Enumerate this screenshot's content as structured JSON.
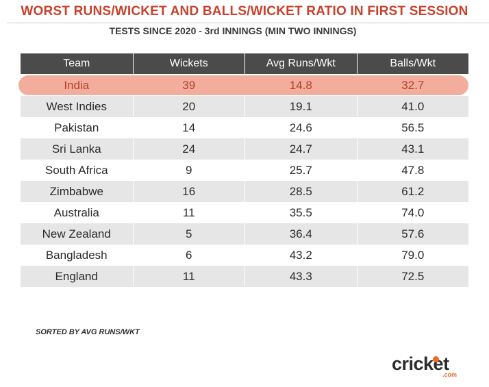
{
  "title": "WORST RUNS/WICKET AND BALLS/WICKET RATIO IN FIRST SESSION",
  "subtitle": "TESTS SINCE 2020 - 3rd INNINGS (MIN TWO INNINGS)",
  "footnote": "SORTED BY AVG RUNS/WKT",
  "logo": {
    "text": "cricket",
    "sub": ".com"
  },
  "colors": {
    "title": "#c8412c",
    "header_bg": "#4b4b4b",
    "highlight_bg": "#f3ad9c",
    "highlight_text": "#b0412d",
    "stripe": "#e6e6e6",
    "logo_accent": "#ef6c28"
  },
  "chart_data": {
    "type": "table",
    "columns": [
      "Team",
      "Wickets",
      "Avg Runs/Wkt",
      "Balls/Wkt"
    ],
    "highlighted_row": "India",
    "rows": [
      {
        "team": "India",
        "wickets": "39",
        "avg_runs_wkt": "14.8",
        "balls_wkt": "32.7"
      },
      {
        "team": "West Indies",
        "wickets": "20",
        "avg_runs_wkt": "19.1",
        "balls_wkt": "41.0"
      },
      {
        "team": "Pakistan",
        "wickets": "14",
        "avg_runs_wkt": "24.6",
        "balls_wkt": "56.5"
      },
      {
        "team": "Sri Lanka",
        "wickets": "24",
        "avg_runs_wkt": "24.7",
        "balls_wkt": "43.1"
      },
      {
        "team": "South Africa",
        "wickets": "9",
        "avg_runs_wkt": "25.7",
        "balls_wkt": "47.8"
      },
      {
        "team": "Zimbabwe",
        "wickets": "16",
        "avg_runs_wkt": "28.5",
        "balls_wkt": "61.2"
      },
      {
        "team": "Australia",
        "wickets": "11",
        "avg_runs_wkt": "35.5",
        "balls_wkt": "74.0"
      },
      {
        "team": "New Zealand",
        "wickets": "5",
        "avg_runs_wkt": "36.4",
        "balls_wkt": "57.6"
      },
      {
        "team": "Bangladesh",
        "wickets": "6",
        "avg_runs_wkt": "43.2",
        "balls_wkt": "79.0"
      },
      {
        "team": "England",
        "wickets": "11",
        "avg_runs_wkt": "43.3",
        "balls_wkt": "72.5"
      }
    ]
  }
}
